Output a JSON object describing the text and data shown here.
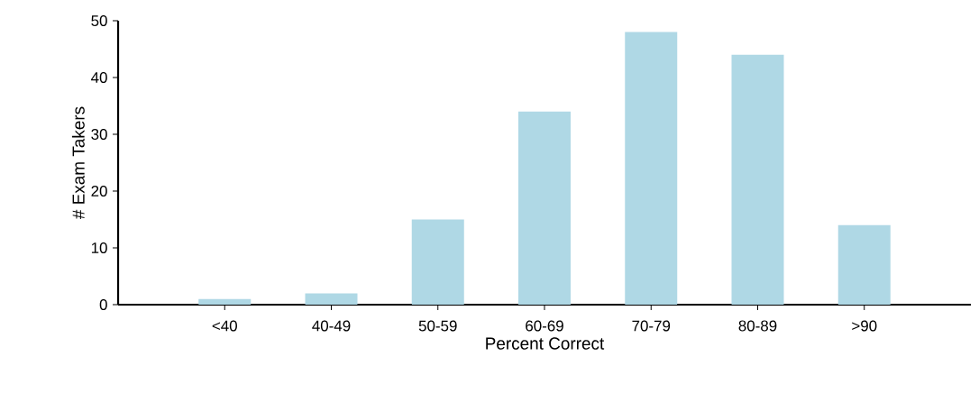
{
  "chart_data": {
    "type": "bar",
    "xlabel": "Percent Correct",
    "ylabel": "# Exam Takers",
    "categories": [
      "<40",
      "40-49",
      "50-59",
      "60-69",
      "70-79",
      "80-89",
      ">90"
    ],
    "values": [
      1,
      2,
      15,
      34,
      48,
      44,
      14
    ],
    "color": "#afd8e5",
    "ylim": [
      0,
      50
    ],
    "yticks": [
      0,
      10,
      20,
      30,
      40,
      50
    ],
    "grid": false
  }
}
